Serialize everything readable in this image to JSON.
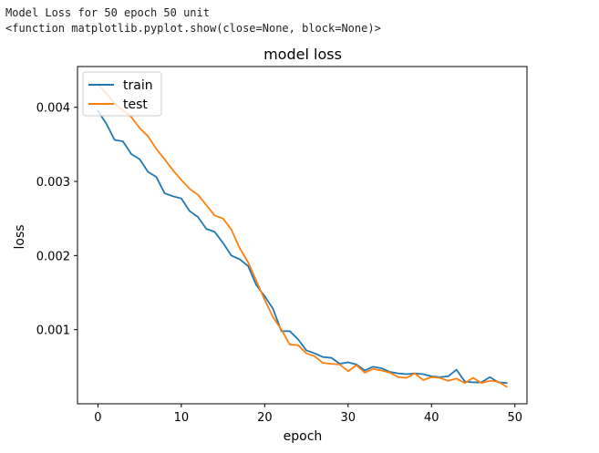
{
  "console": {
    "line1": "Model Loss for 50 epoch 50 unit",
    "line2": "<function matplotlib.pyplot.show(close=None, block=None)>"
  },
  "chart_data": {
    "type": "line",
    "title": "model loss",
    "xlabel": "epoch",
    "ylabel": "loss",
    "xlim": [
      -2.45,
      51.45
    ],
    "ylim": [
      0.0,
      0.00455
    ],
    "xticks": [
      0,
      10,
      20,
      30,
      40,
      50
    ],
    "yticks": [
      0.001,
      0.002,
      0.003,
      0.004
    ],
    "ytick_labels": [
      "0.001",
      "0.002",
      "0.003",
      "0.004"
    ],
    "legend_position": "upper left",
    "grid": false,
    "x": [
      0,
      1,
      2,
      3,
      4,
      5,
      6,
      7,
      8,
      9,
      10,
      11,
      12,
      13,
      14,
      15,
      16,
      17,
      18,
      19,
      20,
      21,
      22,
      23,
      24,
      25,
      26,
      27,
      28,
      29,
      30,
      31,
      32,
      33,
      34,
      35,
      36,
      37,
      38,
      39,
      40,
      41,
      42,
      43,
      44,
      45,
      46,
      47,
      48,
      49
    ],
    "series": [
      {
        "name": "train",
        "color": "#1f77b4",
        "values": [
          0.00395,
          0.00378,
          0.00356,
          0.00354,
          0.00337,
          0.0033,
          0.00313,
          0.00306,
          0.00284,
          0.0028,
          0.00277,
          0.0026,
          0.00252,
          0.00236,
          0.00232,
          0.00217,
          0.002,
          0.00195,
          0.00186,
          0.0016,
          0.00145,
          0.00128,
          0.00098,
          0.00098,
          0.00087,
          0.00072,
          0.00068,
          0.00063,
          0.00062,
          0.00054,
          0.00056,
          0.00053,
          0.00045,
          0.0005,
          0.00048,
          0.00043,
          0.00041,
          0.0004,
          0.00041,
          0.0004,
          0.00037,
          0.00036,
          0.00037,
          0.00046,
          0.0003,
          0.00029,
          0.00029,
          0.00036,
          0.00029,
          0.00028
        ]
      },
      {
        "name": "test",
        "color": "#ff7f0e",
        "values": [
          0.00431,
          0.00419,
          0.00405,
          0.00396,
          0.00387,
          0.00372,
          0.00361,
          0.00344,
          0.0033,
          0.00315,
          0.00302,
          0.0029,
          0.00282,
          0.00268,
          0.00254,
          0.0025,
          0.00235,
          0.0021,
          0.00191,
          0.00166,
          0.0014,
          0.00117,
          0.001,
          0.0008,
          0.00079,
          0.00068,
          0.00064,
          0.00055,
          0.00054,
          0.00053,
          0.00044,
          0.00052,
          0.00042,
          0.00047,
          0.00045,
          0.00042,
          0.00036,
          0.00035,
          0.00041,
          0.00032,
          0.00036,
          0.00035,
          0.00031,
          0.00034,
          0.00028,
          0.00035,
          0.00028,
          0.00031,
          0.0003,
          0.00023
        ]
      }
    ]
  }
}
